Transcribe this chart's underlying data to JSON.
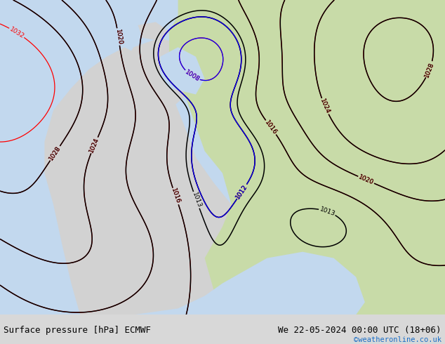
{
  "title_left": "Surface pressure [hPa] ECMWF",
  "title_right": "We 22-05-2024 00:00 UTC (18+06)",
  "copyright": "©weatheronline.co.uk",
  "copyright_color": "#1a6ec7",
  "color_ocean": "#c2d8ee",
  "color_land_green": "#c8dba8",
  "color_land_gray": "#d2d2d2",
  "color_land_white": "#e8e8e8",
  "color_footer": "#d8d8d8",
  "footer_text_color": "#000000",
  "label_fontsize": 6.5,
  "footer_fontsize": 9,
  "figsize": [
    6.34,
    4.9
  ],
  "dpi": 100
}
